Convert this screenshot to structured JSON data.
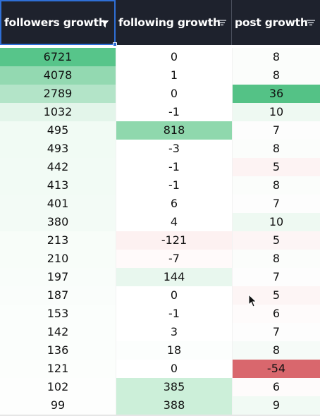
{
  "columns": [
    {
      "label": "followers growth",
      "icon": "filter-active-icon"
    },
    {
      "label": "following growth",
      "icon": "sort-lines-icon"
    },
    {
      "label": "post growth",
      "icon": "sort-lines-icon"
    }
  ],
  "rows": [
    [
      {
        "v": "6721",
        "bg": "#57c58a"
      },
      {
        "v": "0",
        "bg": "#ffffff"
      },
      {
        "v": "8",
        "bg": "#fbfdfb"
      }
    ],
    [
      {
        "v": "4078",
        "bg": "#93d9b1"
      },
      {
        "v": "1",
        "bg": "#ffffff"
      },
      {
        "v": "8",
        "bg": "#fbfdfb"
      }
    ],
    [
      {
        "v": "2789",
        "bg": "#b3e4c8"
      },
      {
        "v": "0",
        "bg": "#ffffff"
      },
      {
        "v": "36",
        "bg": "#54c286"
      }
    ],
    [
      {
        "v": "1032",
        "bg": "#e3f5ea"
      },
      {
        "v": "-1",
        "bg": "#ffffff"
      },
      {
        "v": "10",
        "bg": "#eef9f2"
      }
    ],
    [
      {
        "v": "495",
        "bg": "#f1fbf4"
      },
      {
        "v": "818",
        "bg": "#8fd8ad"
      },
      {
        "v": "7",
        "bg": "#fdfdfd"
      }
    ],
    [
      {
        "v": "493",
        "bg": "#f1fbf4"
      },
      {
        "v": "-3",
        "bg": "#ffffff"
      },
      {
        "v": "8",
        "bg": "#fbfdfb"
      }
    ],
    [
      {
        "v": "442",
        "bg": "#f2fbf5"
      },
      {
        "v": "-1",
        "bg": "#ffffff"
      },
      {
        "v": "5",
        "bg": "#fdf3f3"
      }
    ],
    [
      {
        "v": "413",
        "bg": "#f2fbf5"
      },
      {
        "v": "-1",
        "bg": "#ffffff"
      },
      {
        "v": "8",
        "bg": "#fbfdfb"
      }
    ],
    [
      {
        "v": "401",
        "bg": "#f3fbf6"
      },
      {
        "v": "6",
        "bg": "#ffffff"
      },
      {
        "v": "7",
        "bg": "#fdfdfd"
      }
    ],
    [
      {
        "v": "380",
        "bg": "#f3fbf6"
      },
      {
        "v": "4",
        "bg": "#ffffff"
      },
      {
        "v": "10",
        "bg": "#eef9f2"
      }
    ],
    [
      {
        "v": "213",
        "bg": "#f8fdf9"
      },
      {
        "v": "-121",
        "bg": "#fdf1f1"
      },
      {
        "v": "5",
        "bg": "#fdf5f5"
      }
    ],
    [
      {
        "v": "210",
        "bg": "#f8fdf9"
      },
      {
        "v": "-7",
        "bg": "#fffafa"
      },
      {
        "v": "8",
        "bg": "#fbfdfb"
      }
    ],
    [
      {
        "v": "197",
        "bg": "#f9fdfa"
      },
      {
        "v": "144",
        "bg": "#e8f7ee"
      },
      {
        "v": "7",
        "bg": "#fdfdfd"
      }
    ],
    [
      {
        "v": "187",
        "bg": "#fafdfb"
      },
      {
        "v": "0",
        "bg": "#ffffff"
      },
      {
        "v": "5",
        "bg": "#fdf5f5"
      }
    ],
    [
      {
        "v": "153",
        "bg": "#fbfefc"
      },
      {
        "v": "-1",
        "bg": "#ffffff"
      },
      {
        "v": "6",
        "bg": "#fefbfb"
      }
    ],
    [
      {
        "v": "142",
        "bg": "#fbfefc"
      },
      {
        "v": "3",
        "bg": "#ffffff"
      },
      {
        "v": "7",
        "bg": "#fdfdfd"
      }
    ],
    [
      {
        "v": "136",
        "bg": "#fbfefc"
      },
      {
        "v": "18",
        "bg": "#fcfefd"
      },
      {
        "v": "8",
        "bg": "#f6fbf8"
      }
    ],
    [
      {
        "v": "121",
        "bg": "#fcfefc"
      },
      {
        "v": "0",
        "bg": "#ffffff"
      },
      {
        "v": "-54",
        "bg": "#d9676d"
      }
    ],
    [
      {
        "v": "102",
        "bg": "#fdfefd"
      },
      {
        "v": "385",
        "bg": "#ccefd9"
      },
      {
        "v": "6",
        "bg": "#fefbfb"
      }
    ],
    [
      {
        "v": "99",
        "bg": "#fdfefd"
      },
      {
        "v": "388",
        "bg": "#ccefd9"
      },
      {
        "v": "9",
        "bg": "#f1faf4"
      }
    ]
  ]
}
